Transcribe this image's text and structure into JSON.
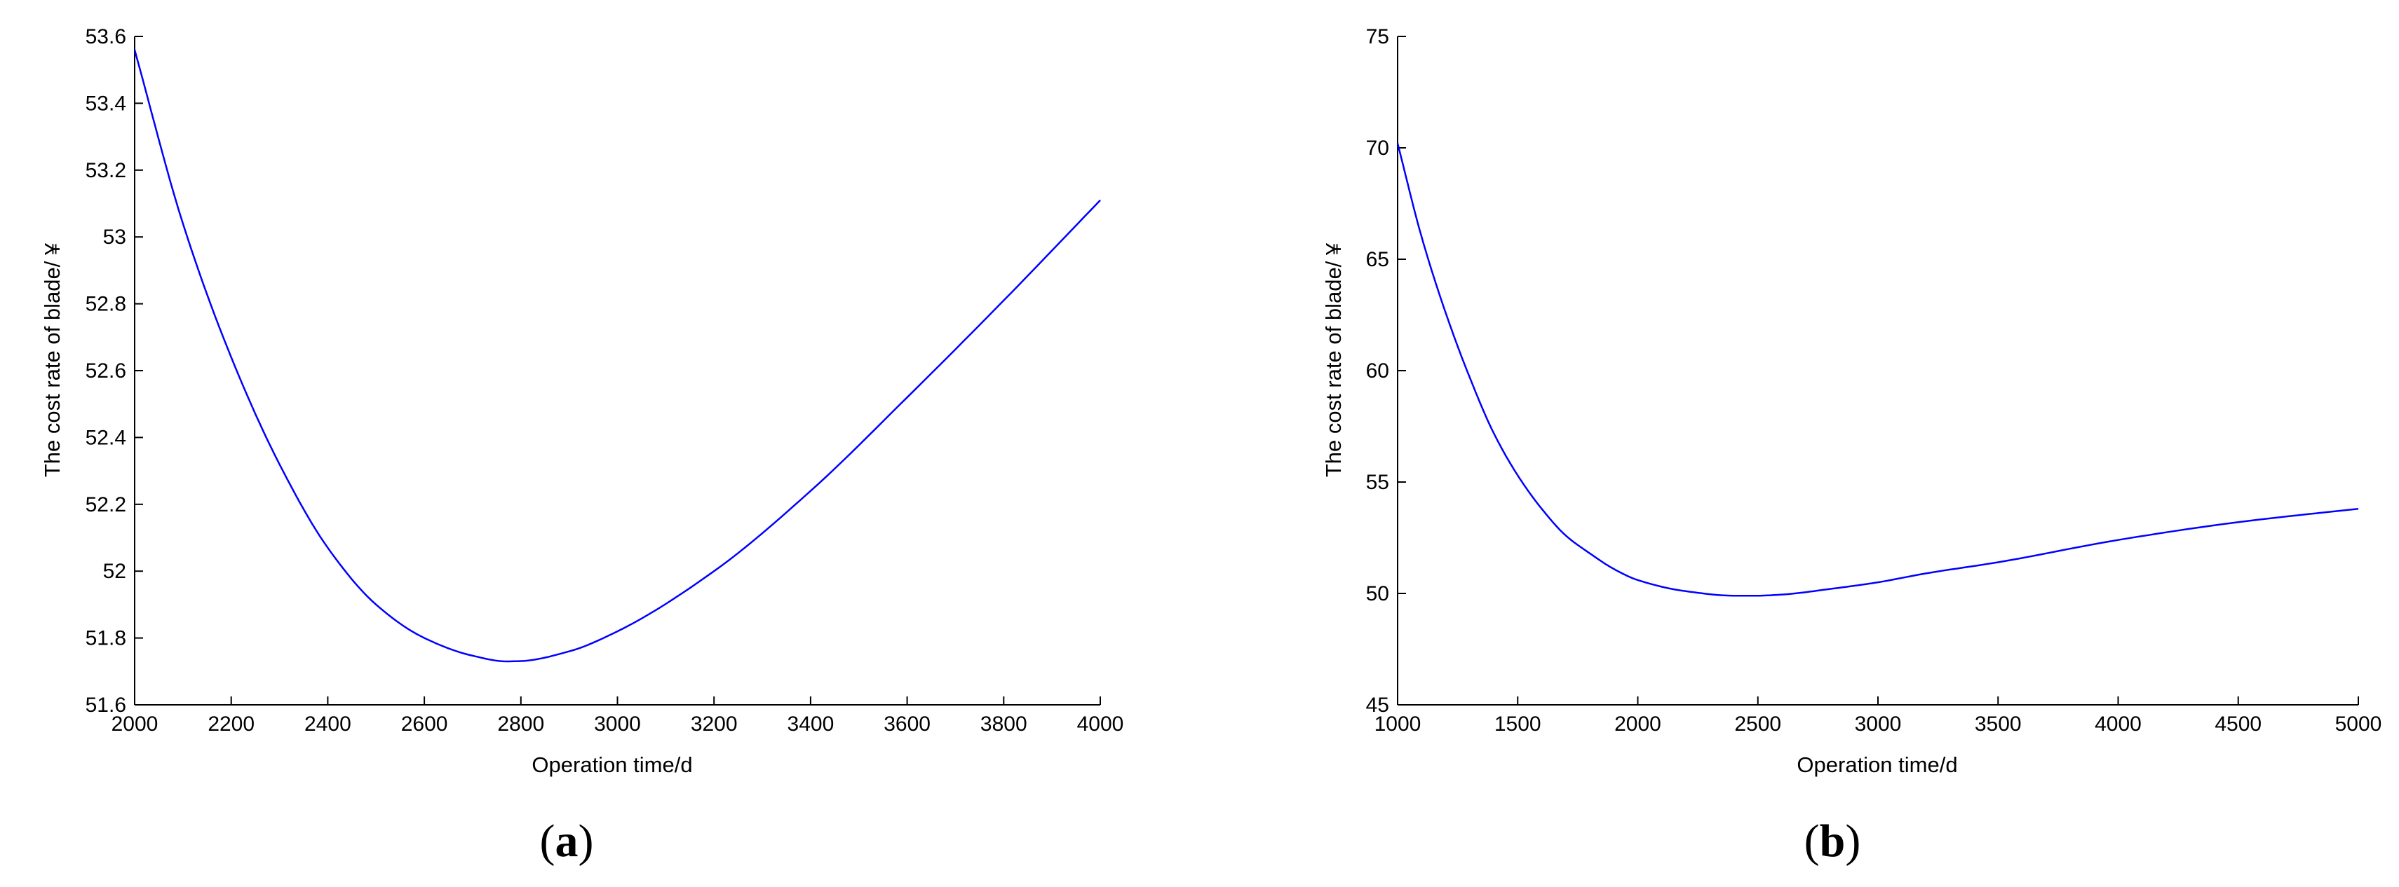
{
  "chart_data": [
    {
      "type": "line",
      "panel_label": "a",
      "xlabel": "Operation time/d",
      "ylabel": "The cost rate of blade/ ¥",
      "xlim": [
        2000,
        4000
      ],
      "ylim": [
        51.6,
        53.6
      ],
      "xticks": [
        2000,
        2200,
        2400,
        2600,
        2800,
        3000,
        3200,
        3400,
        3600,
        3800,
        4000
      ],
      "yticks": [
        51.6,
        51.8,
        52,
        52.2,
        52.4,
        52.6,
        52.8,
        53,
        53.2,
        53.4,
        53.6
      ],
      "ytick_labels": [
        "51.6",
        "51.8",
        "52",
        "52.2",
        "52.4",
        "52.6",
        "52.8",
        "53",
        "53.2",
        "53.4",
        "53.6"
      ],
      "grid": false,
      "line_color": "#0000ff",
      "series": [
        {
          "x": [
            2000,
            2100,
            2200,
            2300,
            2400,
            2500,
            2600,
            2700,
            2770,
            2800,
            2900,
            3000,
            3200,
            3400,
            3600,
            3800,
            4000
          ],
          "y": [
            53.56,
            53.04,
            52.64,
            52.32,
            52.07,
            51.9,
            51.8,
            51.747,
            51.73,
            51.731,
            51.76,
            51.82,
            52.0,
            52.24,
            52.52,
            52.81,
            53.11
          ]
        }
      ]
    },
    {
      "type": "line",
      "panel_label": "b",
      "xlabel": "Operation time/d",
      "ylabel": "The cost rate of blade/ ¥",
      "xlim": [
        1000,
        5000
      ],
      "ylim": [
        45,
        75
      ],
      "xticks": [
        1000,
        1500,
        2000,
        2500,
        3000,
        3500,
        4000,
        4500,
        5000
      ],
      "yticks": [
        45,
        50,
        55,
        60,
        65,
        70,
        75
      ],
      "ytick_labels": [
        "45",
        "50",
        "55",
        "60",
        "65",
        "70",
        "75"
      ],
      "grid": false,
      "line_color": "#0000ff",
      "series": [
        {
          "x": [
            1000,
            1100,
            1200,
            1300,
            1400,
            1500,
            1600,
            1700,
            1800,
            1900,
            2000,
            2200,
            2400,
            2500,
            2600,
            2800,
            3000,
            3200,
            3500,
            4000,
            4500,
            5000
          ],
          "y": [
            70.2,
            66.0,
            62.6,
            59.7,
            57.2,
            55.3,
            53.8,
            52.6,
            51.8,
            51.1,
            50.6,
            50.1,
            49.9,
            49.9,
            49.95,
            50.2,
            50.5,
            50.9,
            51.4,
            52.4,
            53.2,
            53.8
          ]
        }
      ]
    }
  ]
}
